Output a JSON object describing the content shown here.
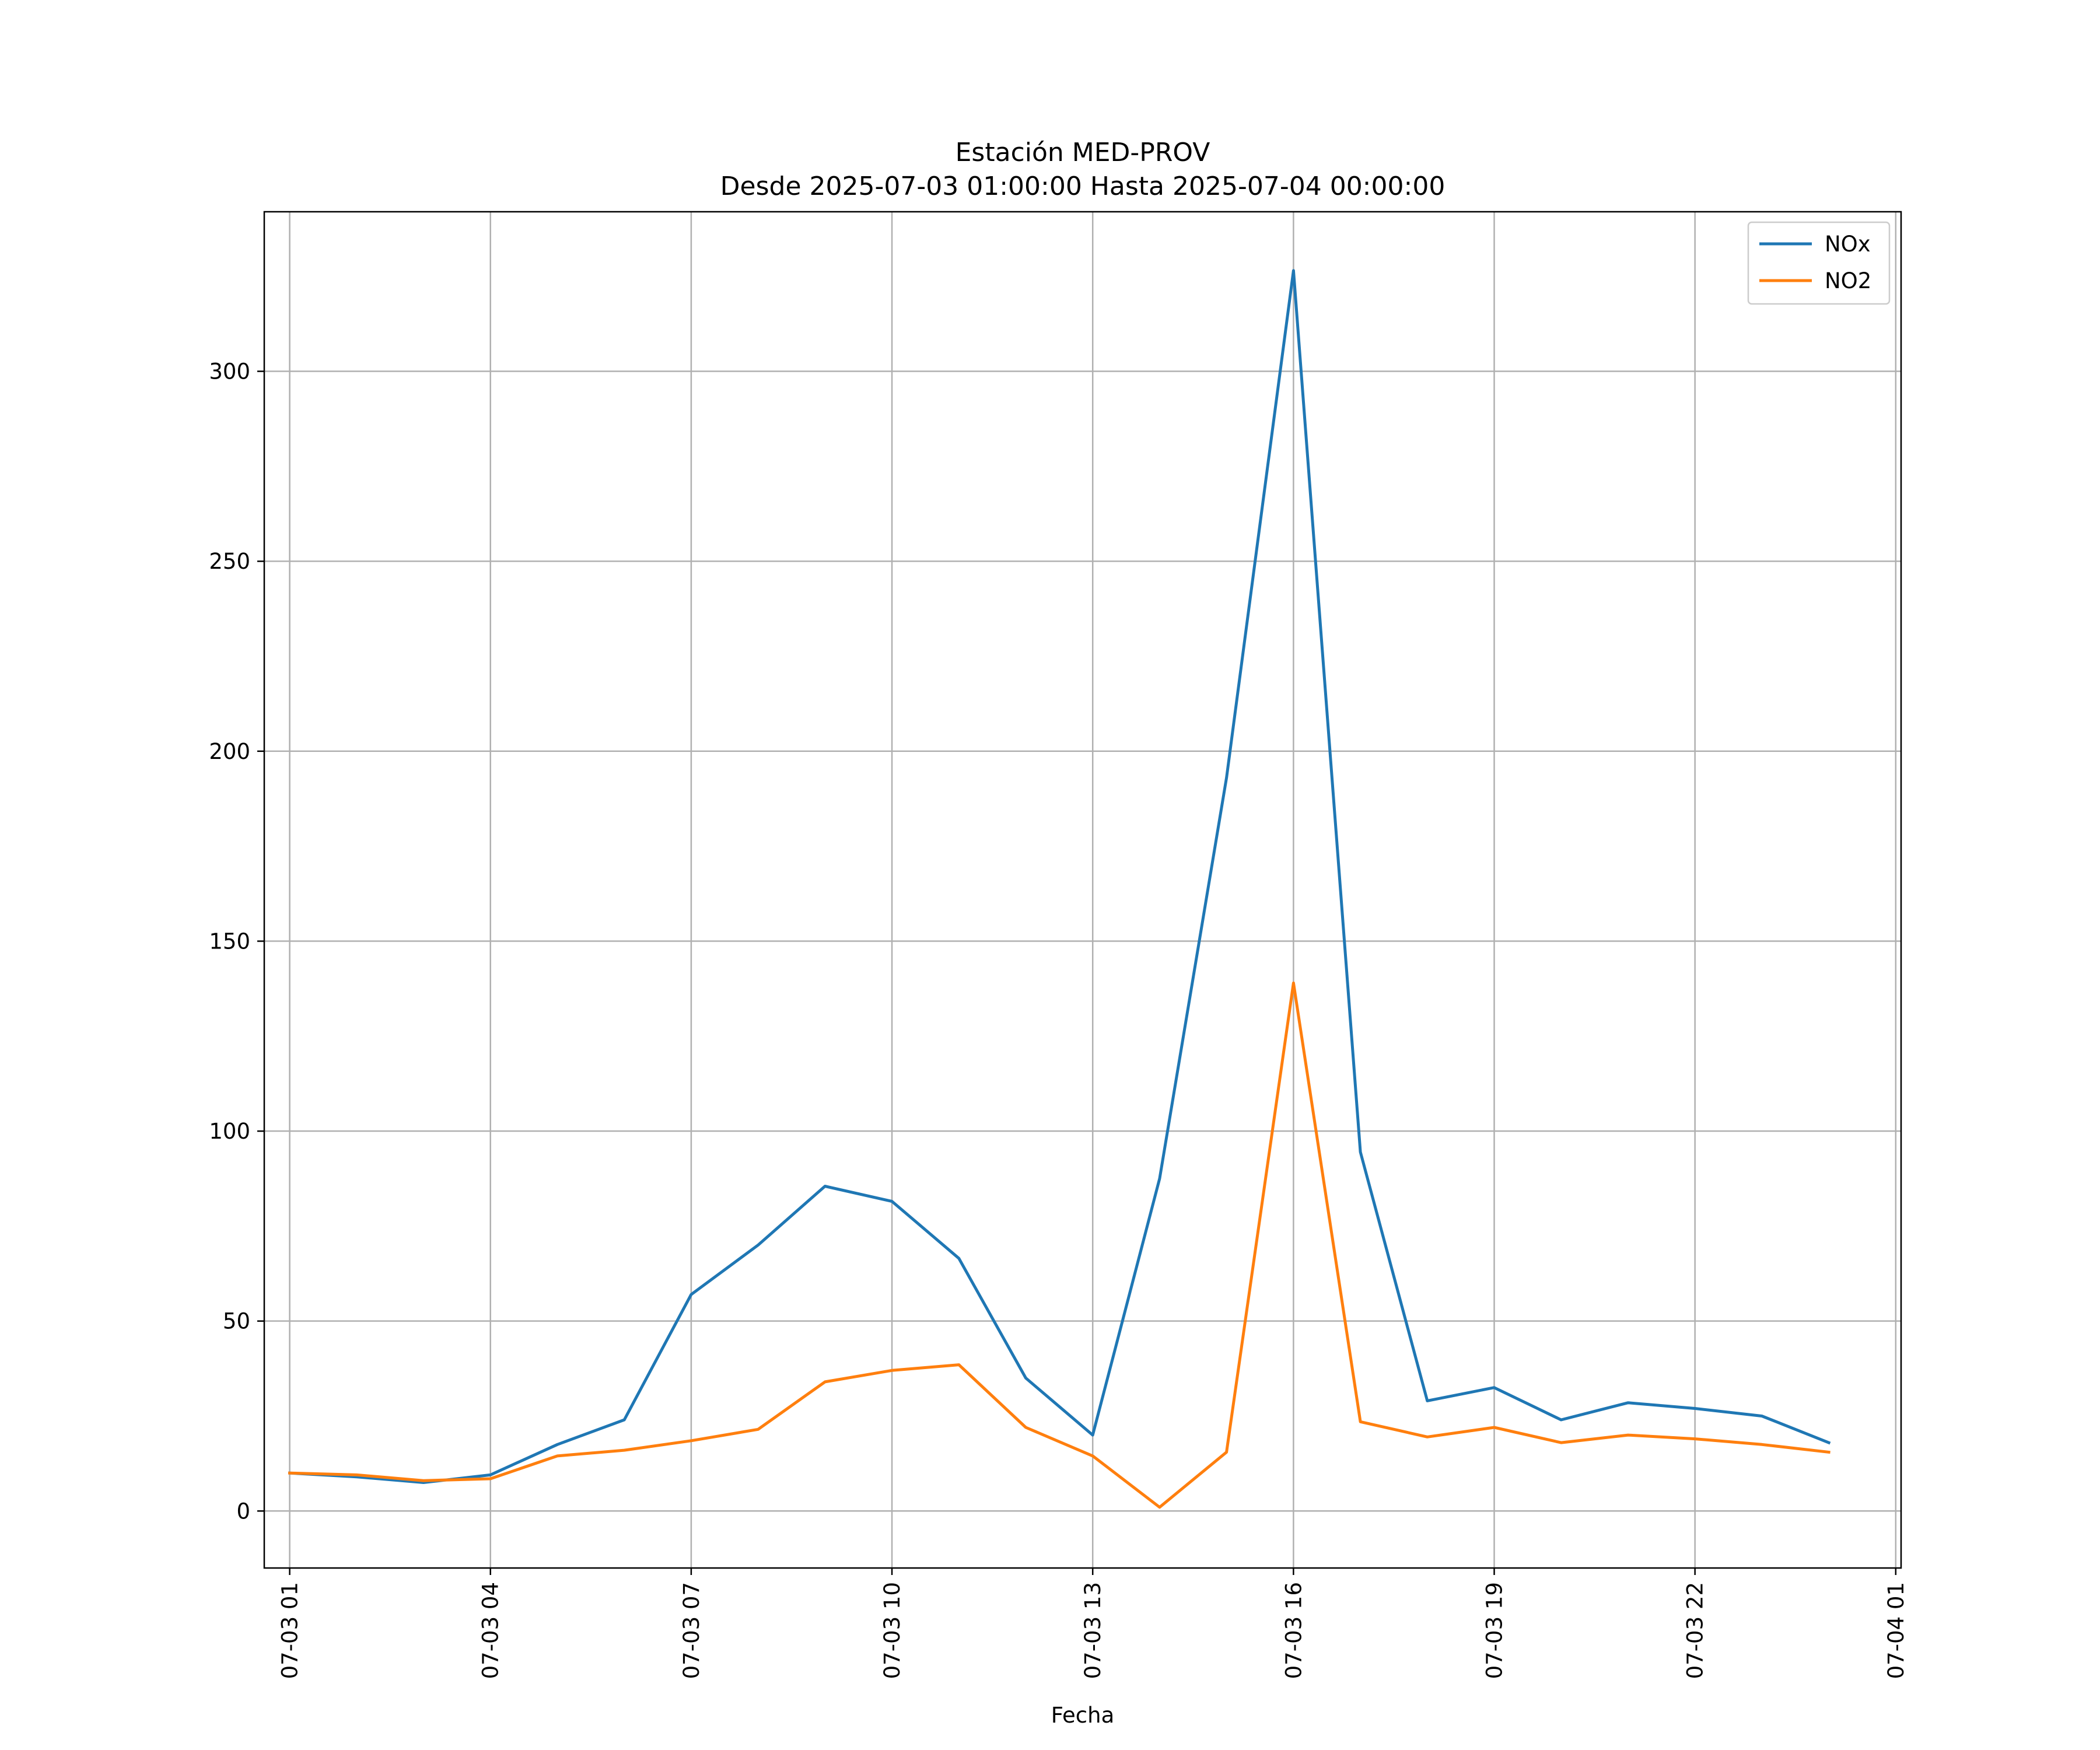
{
  "chart_data": {
    "type": "line",
    "title": "Estación MED-PROV",
    "subtitle": "Desde 2025-07-03 01:00:00 Hasta 2025-07-04 00:00:00",
    "xlabel": "Fecha",
    "ylabel": "",
    "ylim": [
      -15,
      342
    ],
    "xlim_hours": [
      -0.38,
      24.08
    ],
    "grid": true,
    "legend_position": "top-right",
    "y_ticks": [
      0,
      50,
      100,
      150,
      200,
      250,
      300
    ],
    "y_tick_labels": [
      "0",
      "50",
      "100",
      "150",
      "200",
      "250",
      "300"
    ],
    "x_ticks_hours": [
      0,
      3,
      6,
      9,
      12,
      15,
      18,
      21,
      24
    ],
    "x_tick_labels": [
      "07-03 01",
      "07-03 04",
      "07-03 07",
      "07-03 10",
      "07-03 13",
      "07-03 16",
      "07-03 19",
      "07-03 22",
      "07-04 01"
    ],
    "x": [
      "2025-07-03 01:00",
      "2025-07-03 02:00",
      "2025-07-03 03:00",
      "2025-07-03 04:00",
      "2025-07-03 05:00",
      "2025-07-03 06:00",
      "2025-07-03 07:00",
      "2025-07-03 08:00",
      "2025-07-03 09:00",
      "2025-07-03 10:00",
      "2025-07-03 11:00",
      "2025-07-03 12:00",
      "2025-07-03 13:00",
      "2025-07-03 14:00",
      "2025-07-03 15:00",
      "2025-07-03 16:00",
      "2025-07-03 17:00",
      "2025-07-03 18:00",
      "2025-07-03 19:00",
      "2025-07-03 20:00",
      "2025-07-03 21:00",
      "2025-07-03 22:00",
      "2025-07-03 23:00",
      "2025-07-04 00:00"
    ],
    "x_hours": [
      0,
      1,
      2,
      3,
      4,
      5,
      6,
      7,
      8,
      9,
      10,
      11,
      12,
      13,
      14,
      15,
      16,
      17,
      18,
      19,
      20,
      21,
      22,
      23
    ],
    "series": [
      {
        "name": "NOx",
        "color": "#1f77b4",
        "values": [
          10,
          9,
          7.5,
          9.5,
          17.5,
          24,
          57,
          70,
          85.5,
          81.5,
          66.5,
          35,
          20,
          87.5,
          193,
          326.5,
          94.5,
          29,
          32.5,
          24,
          28.5,
          27,
          25,
          18
        ]
      },
      {
        "name": "NO2",
        "color": "#ff7f0e",
        "values": [
          10,
          9.5,
          8,
          8.5,
          14.5,
          16,
          18.5,
          21.5,
          34,
          37,
          38.5,
          22,
          14.5,
          1,
          15.5,
          139,
          23.5,
          19.5,
          22,
          18,
          20,
          19,
          17.5,
          15.5
        ]
      }
    ]
  }
}
